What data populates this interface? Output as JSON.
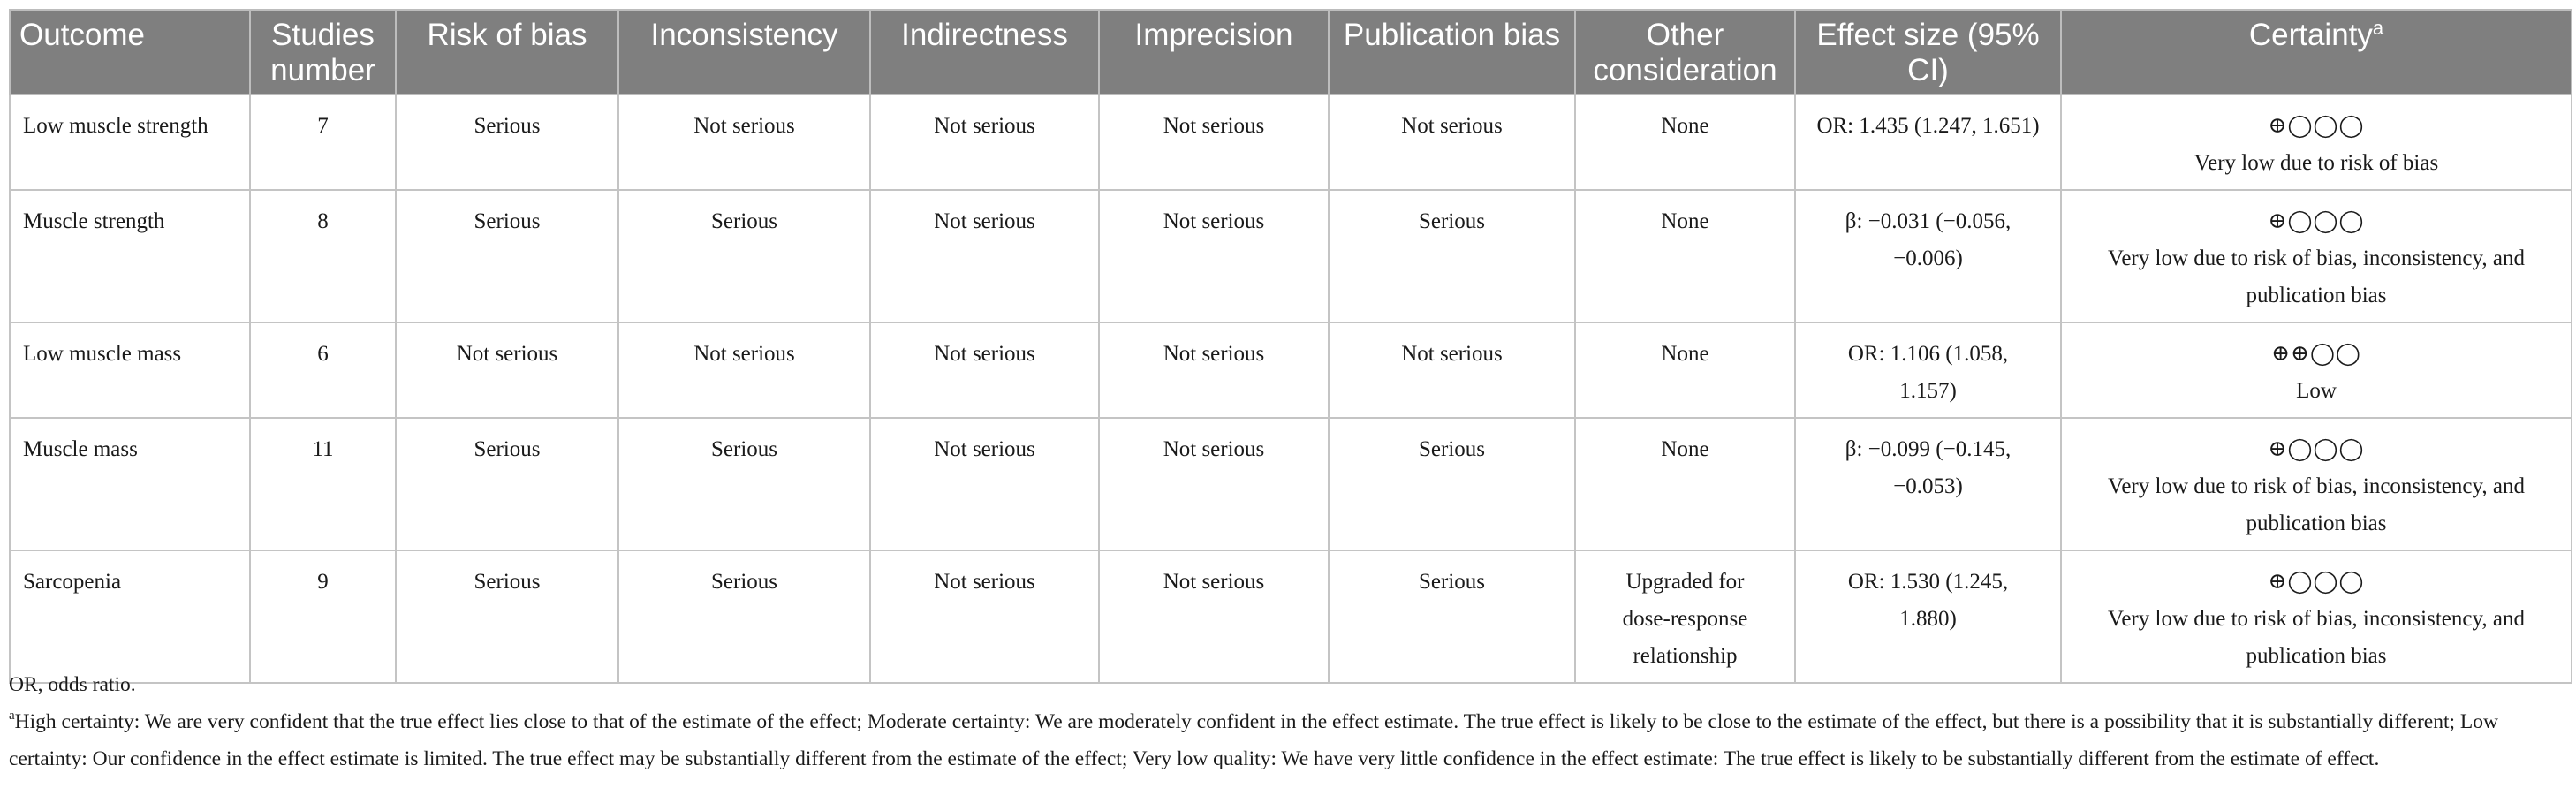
{
  "table": {
    "headers": [
      {
        "label": "Outcome",
        "sup": ""
      },
      {
        "label": "Studies number",
        "sup": ""
      },
      {
        "label": "Risk of bias",
        "sup": ""
      },
      {
        "label": "Inconsistency",
        "sup": ""
      },
      {
        "label": "Indirectness",
        "sup": ""
      },
      {
        "label": "Imprecision",
        "sup": ""
      },
      {
        "label": "Publication bias",
        "sup": ""
      },
      {
        "label": "Other consideration",
        "sup": ""
      },
      {
        "label": "Effect size (95% CI)",
        "sup": ""
      },
      {
        "label": "Certainty",
        "sup": "a"
      }
    ],
    "rows": [
      {
        "outcome": "Low muscle strength",
        "studies": "7",
        "risk_of_bias": "Serious",
        "inconsistency": "Not serious",
        "indirectness": "Not serious",
        "imprecision": "Not serious",
        "publication_bias": "Not serious",
        "other": "None",
        "effect": "OR: 1.435 (1.247, 1.651)",
        "certainty_symbols": "⊕◯◯◯",
        "certainty_text": "Very low due to risk of bias"
      },
      {
        "outcome": "Muscle strength",
        "studies": "8",
        "risk_of_bias": "Serious",
        "inconsistency": "Serious",
        "indirectness": "Not serious",
        "imprecision": "Not serious",
        "publication_bias": "Serious",
        "other": "None",
        "effect": "β: −0.031 (−0.056, −0.006)",
        "certainty_symbols": "⊕◯◯◯",
        "certainty_text": "Very low due to risk of bias, inconsistency, and publication bias"
      },
      {
        "outcome": "Low muscle mass",
        "studies": "6",
        "risk_of_bias": "Not serious",
        "inconsistency": "Not serious",
        "indirectness": "Not serious",
        "imprecision": "Not serious",
        "publication_bias": "Not serious",
        "other": "None",
        "effect": "OR: 1.106 (1.058, 1.157)",
        "certainty_symbols": "⊕⊕◯◯",
        "certainty_text": "Low"
      },
      {
        "outcome": "Muscle mass",
        "studies": "11",
        "risk_of_bias": "Serious",
        "inconsistency": "Serious",
        "indirectness": "Not serious",
        "imprecision": "Not serious",
        "publication_bias": "Serious",
        "other": "None",
        "effect": "β: −0.099 (−0.145, −0.053)",
        "certainty_symbols": "⊕◯◯◯",
        "certainty_text": "Very low due to risk of bias, inconsistency, and publication bias"
      },
      {
        "outcome": "Sarcopenia",
        "studies": "9",
        "risk_of_bias": "Serious",
        "inconsistency": "Serious",
        "indirectness": "Not serious",
        "imprecision": "Not serious",
        "publication_bias": "Serious",
        "other": "Upgraded for dose-response relationship",
        "effect": "OR: 1.530 (1.245, 1.880)",
        "certainty_symbols": "⊕◯◯◯",
        "certainty_text": "Very low due to risk of bias, inconsistency, and publication bias"
      }
    ]
  },
  "footnotes": {
    "abbreviation": "OR, odds ratio.",
    "a_marker": "a",
    "a_text": "High certainty: We are very confident that the true effect lies close to that of the estimate of the effect; Moderate certainty: We are moderately confident in the effect estimate. The true effect is likely to be close to the estimate of the effect, but there is a possibility that it is substantially different; Low certainty: Our confidence in the effect estimate is limited. The true effect may be substantially different from the estimate of the effect; Very low quality: We have very little confidence in the effect estimate: The true effect is likely to be substantially different from the estimate of effect."
  }
}
